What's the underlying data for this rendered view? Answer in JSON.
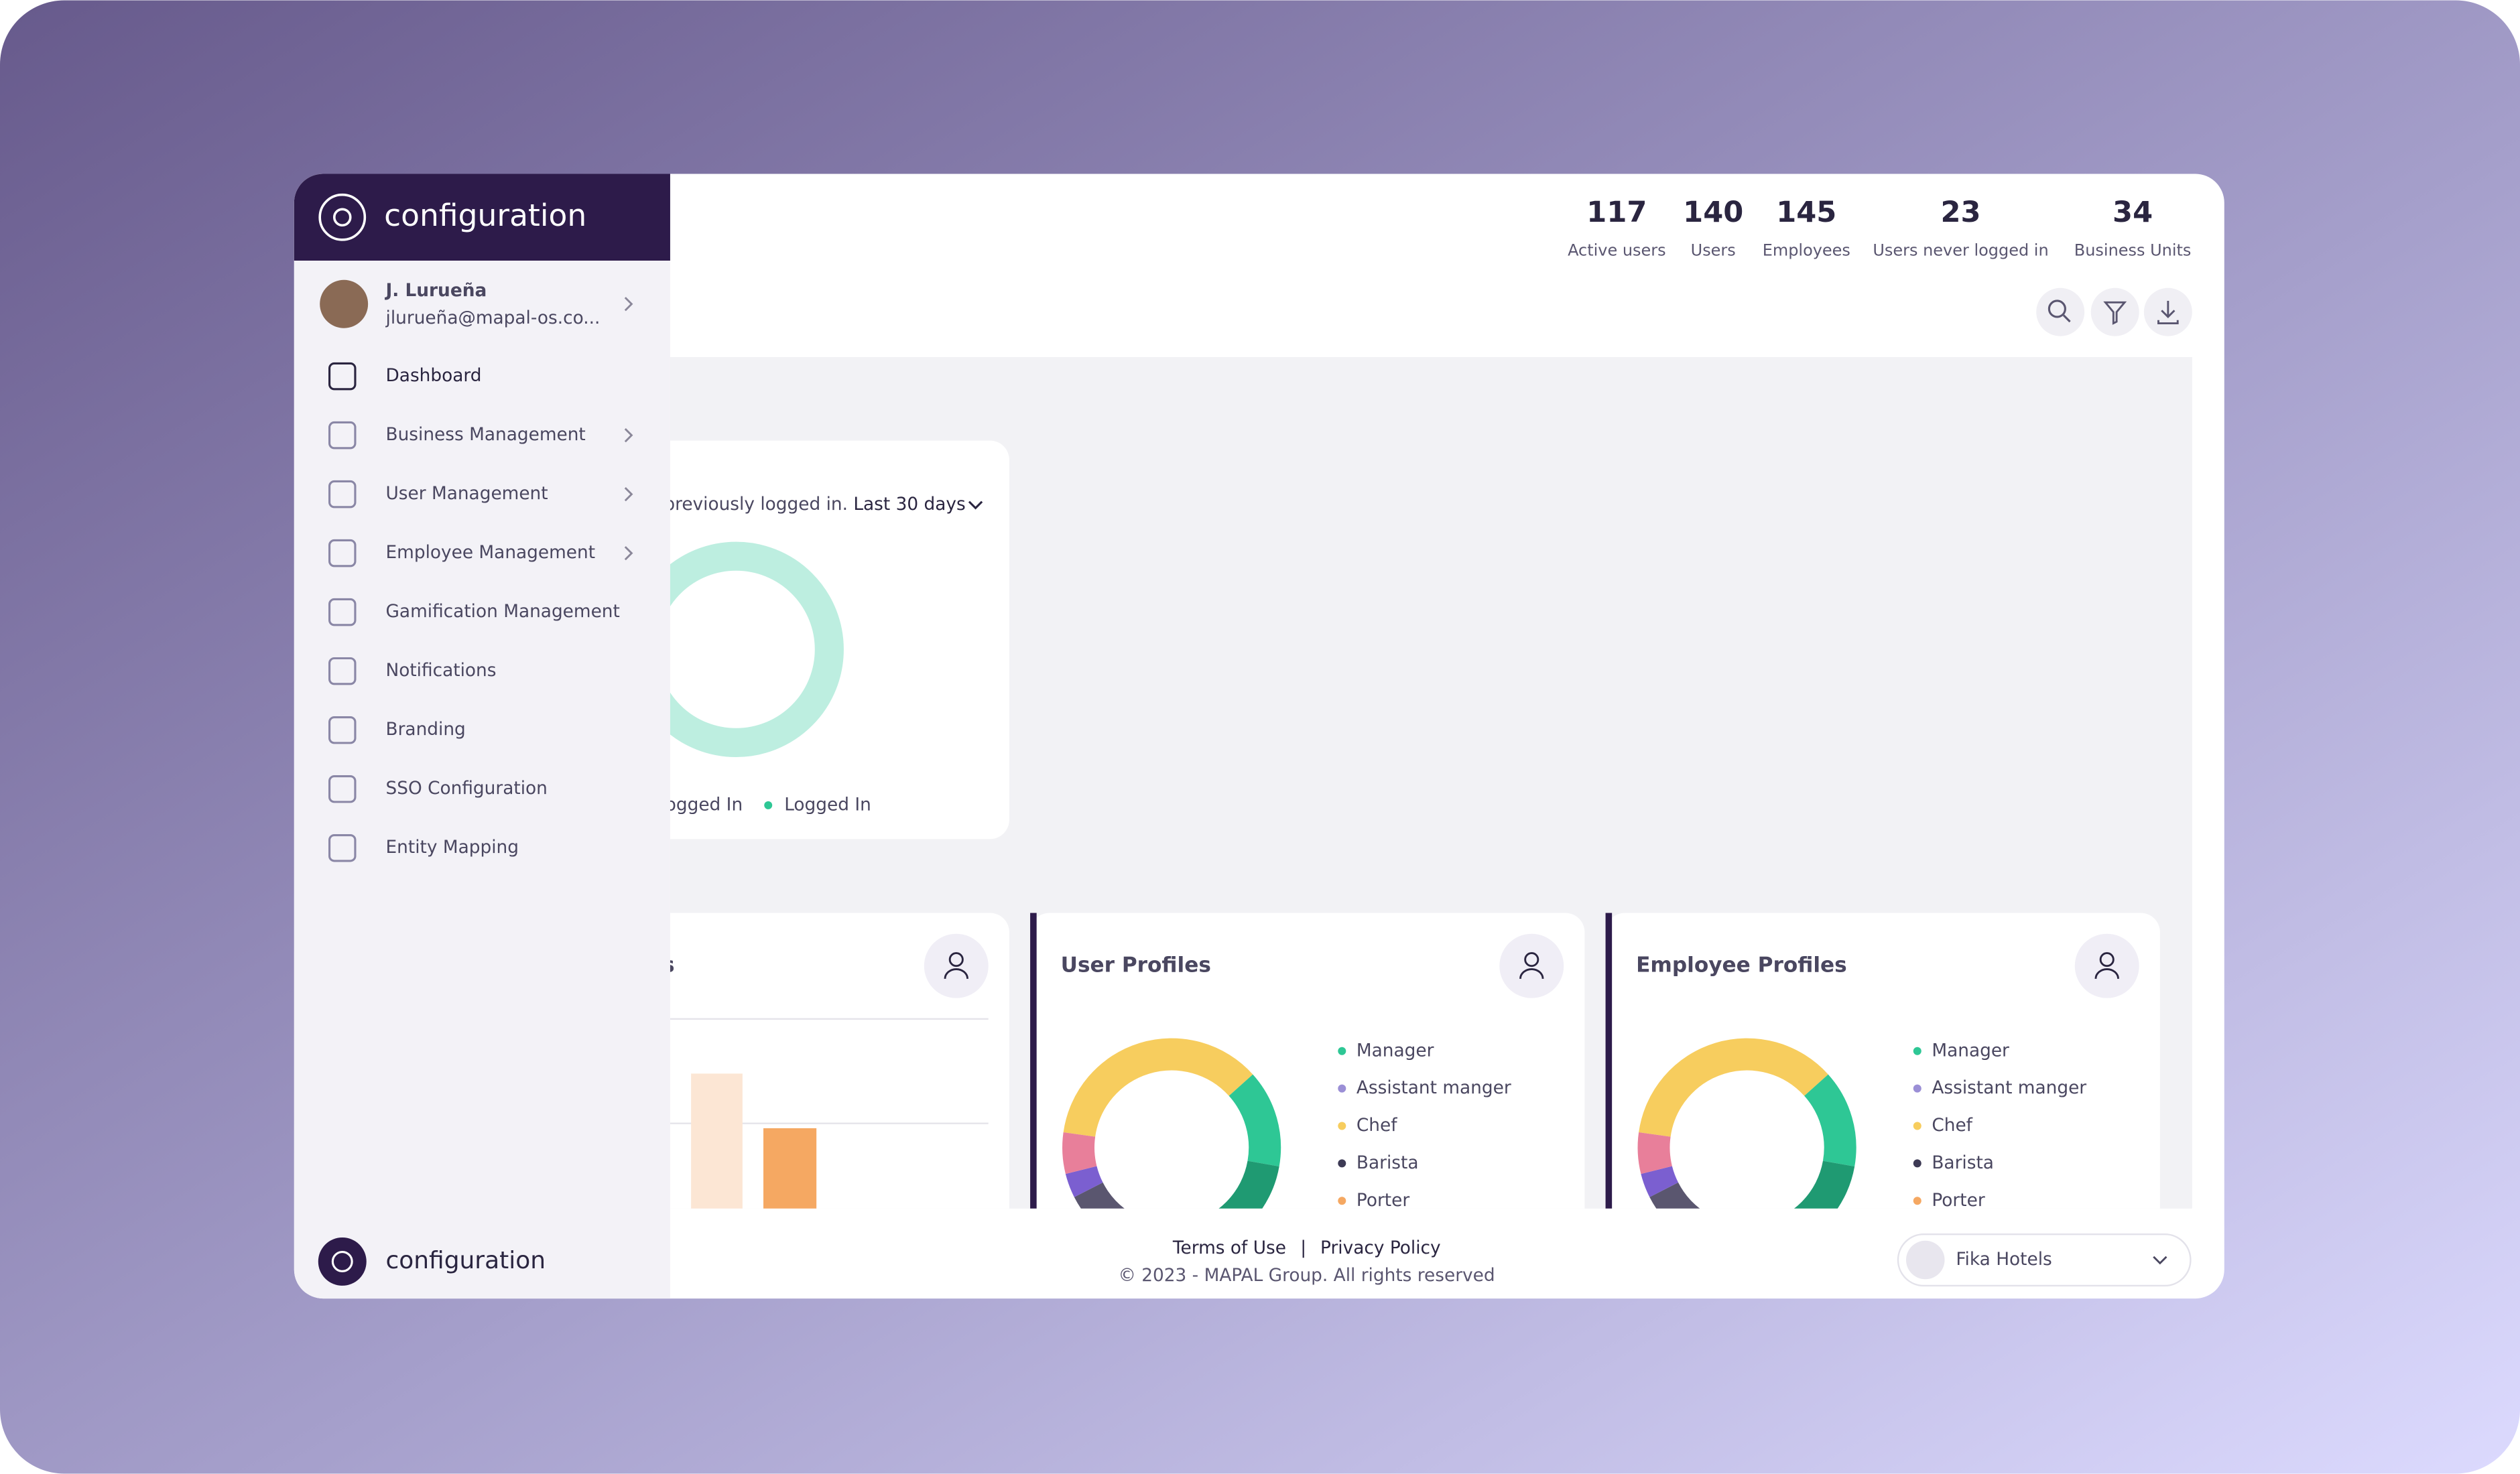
{
  "sidebar": {
    "brand": "configuration",
    "user": {
      "name": "J. Lurueña",
      "email": "jlurueña@mapal-os.co..."
    },
    "menu": [
      "Dashboard",
      "Business Management",
      "User Management",
      "Employee Management",
      "Gamification Management",
      "Notifications",
      "Branding",
      "SSO Configuration",
      "Entity Mapping"
    ],
    "footer_brand": "configuration"
  },
  "stats": [
    {
      "value": 117,
      "label": "Active users"
    },
    {
      "value": 140,
      "label": "Users"
    },
    {
      "value": 145,
      "label": "Employees"
    },
    {
      "value": 23,
      "label": "Users never logged in"
    },
    {
      "value": 34,
      "label": "Business Units"
    }
  ],
  "login_card": {
    "caption": "previously logged in.",
    "period": "Last 30 days",
    "legend": [
      "ogged In",
      "Logged In"
    ]
  },
  "cards": [
    {
      "title": "s"
    },
    {
      "title": "User Profiles",
      "legend": [
        "Manager",
        "Assistant manger",
        "Chef",
        "Barista",
        "Porter"
      ]
    },
    {
      "title": "Employee Profiles",
      "legend": [
        "Manager",
        "Assistant manger",
        "Chef",
        "Barista",
        "Porter"
      ]
    }
  ],
  "footer": {
    "terms": "Terms of Use",
    "separator": "|",
    "privacy": "Privacy Policy",
    "copyright": "© 2023 - MAPAL Group. All rights reserved"
  },
  "org": "Fika Hotels"
}
